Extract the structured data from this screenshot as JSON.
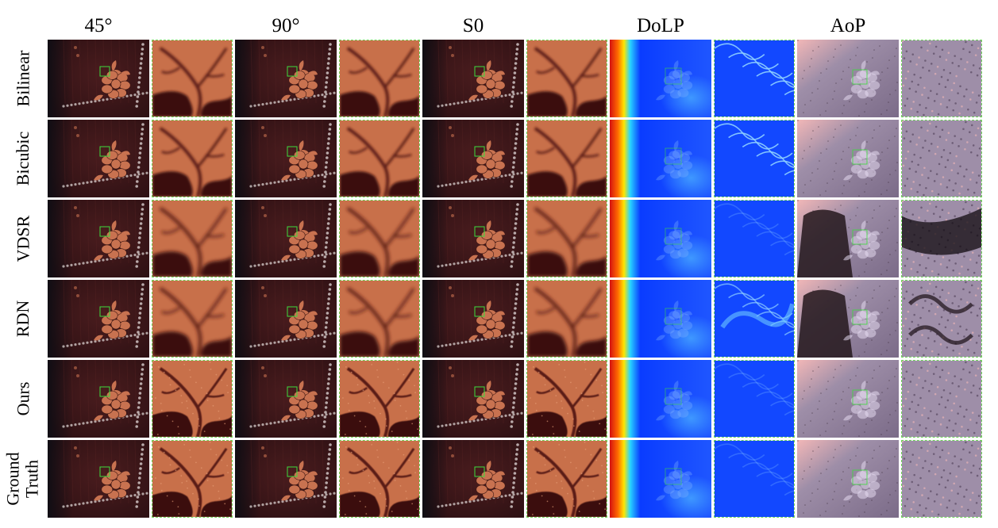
{
  "columns": [
    {
      "label": "45°",
      "type": "intensity"
    },
    {
      "label": "90°",
      "type": "intensity"
    },
    {
      "label": "S0",
      "type": "intensity"
    },
    {
      "label": "DoLP",
      "type": "dolp"
    },
    {
      "label": "AoP",
      "type": "aop"
    }
  ],
  "rows": [
    {
      "label": "Bilinear",
      "crop_look": "blurry"
    },
    {
      "label": "Bicubic",
      "crop_look": "blurry"
    },
    {
      "label": "VDSR",
      "crop_look": "smooth"
    },
    {
      "label": "RDN",
      "crop_look": "smooth"
    },
    {
      "label": "Ours",
      "crop_look": "textured"
    },
    {
      "label": "Ground\nTruth",
      "crop_look": "textured"
    }
  ],
  "colors": {
    "fabric_dark": "#2a0f12",
    "fabric_mid": "#4a1c1e",
    "floral_pattern": "#c87250",
    "crop_leaf": "#c8704a",
    "crop_shadow": "#3a1010",
    "dolp_blue": "#0a3cff",
    "dolp_red": "#d41010",
    "aop_lavender": "#9e8ea8",
    "aop_pink": "#f2b7b7",
    "roi_box": "#3ddc3d",
    "crop_border": "#6fd65a"
  }
}
